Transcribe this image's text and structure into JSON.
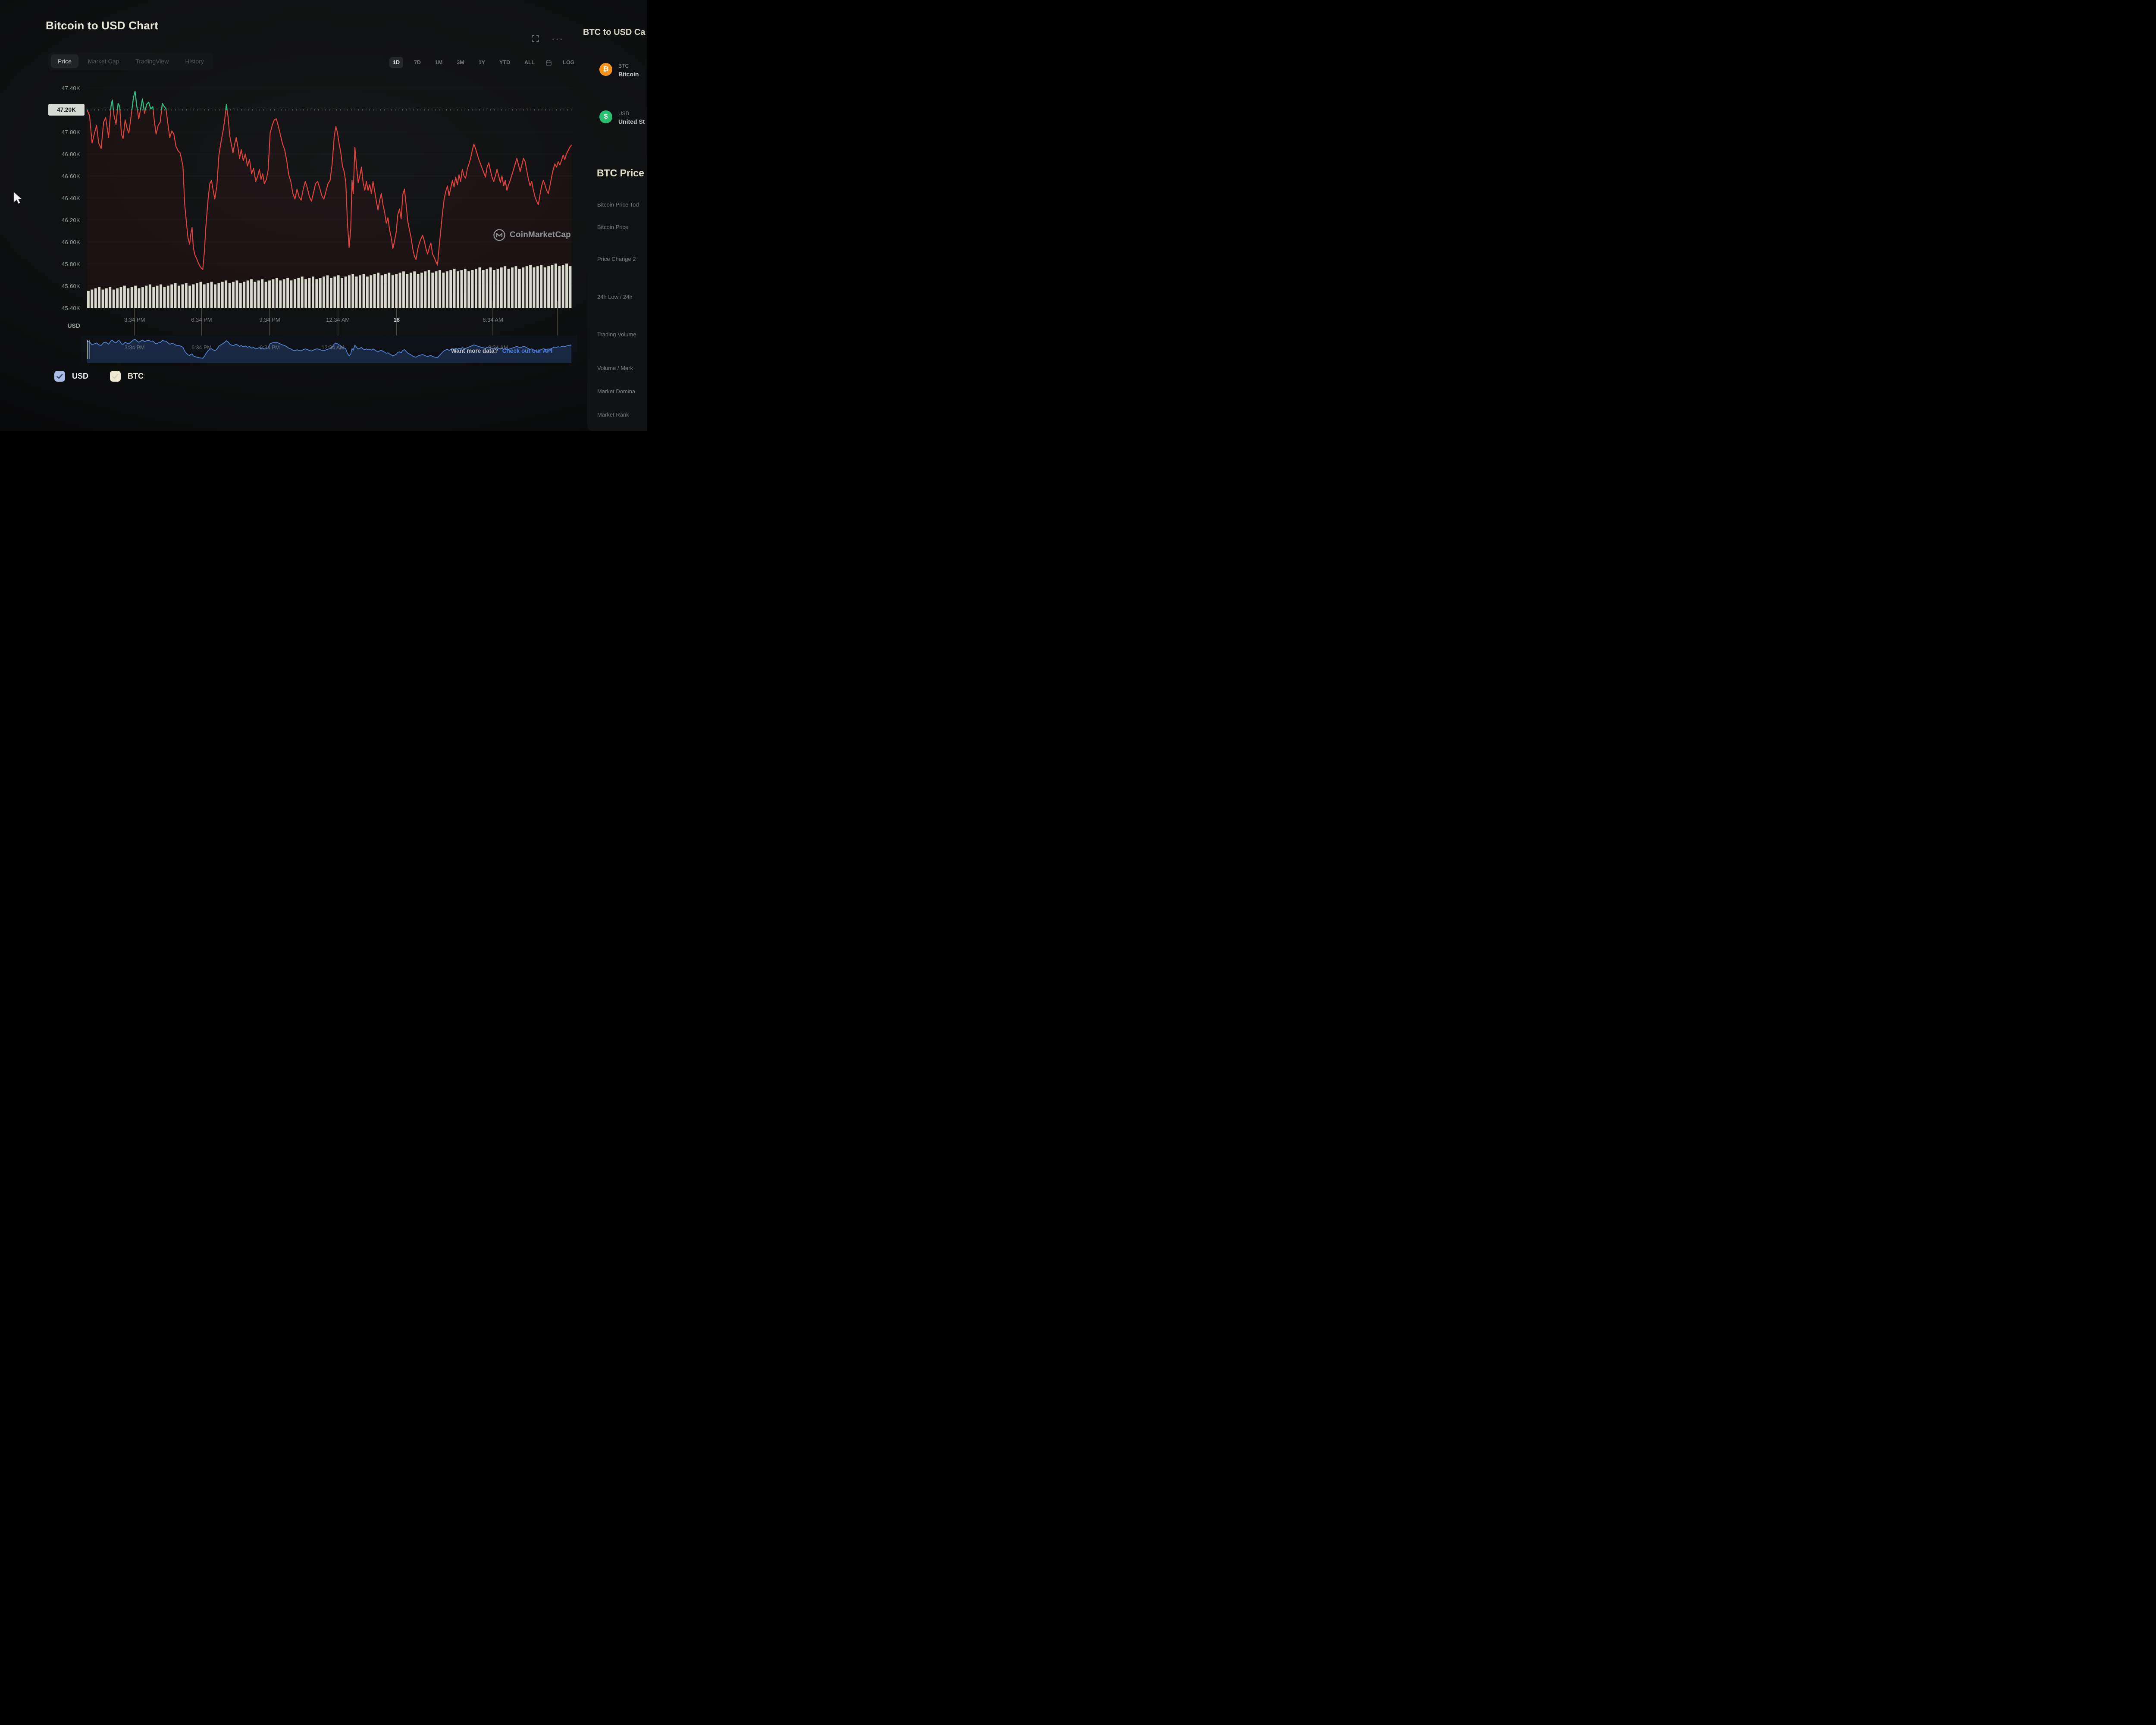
{
  "header": {
    "title": "Bitcoin to USD Chart"
  },
  "toolbar": {
    "tabs": [
      "Price",
      "Market Cap",
      "TradingView",
      "History"
    ],
    "active_tab": "Price",
    "ranges": [
      "1D",
      "7D",
      "1M",
      "3M",
      "1Y",
      "YTD",
      "ALL"
    ],
    "active_range": "1D",
    "log_label": "LOG"
  },
  "y_axis": {
    "unit": "USD",
    "badge": "47.20K",
    "labels": [
      "47.40K",
      "47.20K",
      "47.00K",
      "46.80K",
      "46.60K",
      "46.40K",
      "46.20K",
      "46.00K",
      "45.80K",
      "45.60K",
      "45.40K"
    ]
  },
  "x_axis": {
    "ticks": [
      {
        "label": "3:34 PM",
        "x": 325
      },
      {
        "label": "6:34 PM",
        "x": 487
      },
      {
        "label": "9:34 PM",
        "x": 652
      },
      {
        "label": "12:34 AM",
        "x": 817
      },
      {
        "label": "18",
        "x": 959,
        "date": true
      },
      {
        "label": "6:34 AM",
        "x": 1192
      },
      {
        "label": "",
        "x": 1348
      }
    ]
  },
  "navigator": {
    "labels": [
      {
        "label": "3:34 PM",
        "x": 325
      },
      {
        "label": "6:34 PM",
        "x": 487
      },
      {
        "label": "9:34 PM",
        "x": 652
      },
      {
        "label": "12:34 AM",
        "x": 805
      },
      {
        "label": "9:34 AM",
        "x": 1205
      }
    ]
  },
  "legend": [
    {
      "label": "USD",
      "color": "#a9bde6"
    },
    {
      "label": "BTC",
      "color": "#efe8d0"
    }
  ],
  "watermark": {
    "text": "CoinMarketCap"
  },
  "footer_note": {
    "text": "Want more data?",
    "link": "Check out our API"
  },
  "sidebar": {
    "converter_title": "BTC to USD Ca",
    "coins": [
      {
        "symbol": "BTC",
        "name": "Bitcoin",
        "color": "#f7931a",
        "glyph": "₿"
      },
      {
        "symbol": "USD",
        "name": "United St",
        "color": "#2abf6e",
        "glyph": "$"
      }
    ],
    "stats_title": "BTC Price",
    "stats_rows": [
      "Bitcoin Price Tod",
      "Bitcoin Price",
      "Price Change 2",
      "24h Low / 24h",
      "Trading Volume",
      "Volume / Mark",
      "Market Domina",
      "Market Rank"
    ]
  },
  "chart_data": {
    "type": "line",
    "title": "Bitcoin to USD Chart",
    "y_unit": "USD",
    "ylim": [
      45400,
      47400
    ],
    "y_ticks": [
      47400,
      47200,
      47000,
      46800,
      46600,
      46400,
      46200,
      46000,
      45800,
      45600,
      45400
    ],
    "previous_close": 47200,
    "line_color_up": "#1fc886",
    "line_color_down": "#e0433c",
    "grid": true,
    "x_tick_labels": [
      "3:34 PM",
      "6:34 PM",
      "9:34 PM",
      "12:34 AM",
      "18",
      "6:34 AM"
    ],
    "price_line": {
      "x_domain": [
        210,
        1385
      ],
      "points": [
        210,
        47200,
        216,
        47150,
        222,
        46900,
        228,
        46990,
        233,
        47060,
        238,
        46900,
        244,
        46850,
        250,
        47090,
        255,
        47130,
        262,
        46950,
        268,
        47240,
        271,
        47290,
        275,
        47150,
        280,
        47070,
        285,
        47260,
        289,
        47230,
        293,
        46980,
        297,
        46940,
        302,
        47110,
        307,
        47030,
        311,
        46990,
        316,
        47130,
        322,
        47310,
        326,
        47370,
        330,
        47240,
        335,
        47120,
        340,
        47220,
        344,
        47300,
        349,
        47170,
        354,
        47250,
        359,
        47270,
        364,
        47210,
        369,
        47230,
        373,
        47090,
        377,
        46980,
        382,
        47060,
        387,
        47090,
        392,
        47260,
        397,
        47230,
        401,
        47210,
        406,
        47060,
        410,
        46950,
        415,
        47010,
        420,
        46980,
        425,
        46870,
        430,
        46830,
        435,
        46810,
        438,
        46760,
        442,
        46690,
        446,
        46350,
        450,
        46190,
        454,
        46040,
        458,
        45980,
        461,
        46070,
        464,
        46130,
        467,
        45950,
        471,
        45880,
        475,
        45850,
        479,
        45810,
        483,
        45780,
        487,
        45760,
        490,
        45750,
        494,
        45920,
        497,
        46120,
        500,
        46260,
        503,
        46400,
        507,
        46530,
        511,
        46560,
        515,
        46470,
        519,
        46390,
        524,
        46510,
        529,
        46790,
        534,
        46910,
        539,
        47010,
        543,
        47110,
        547,
        47250,
        551,
        47140,
        555,
        46970,
        559,
        46890,
        563,
        46810,
        567,
        46890,
        571,
        46950,
        575,
        46860,
        579,
        46760,
        583,
        46840,
        588,
        46740,
        593,
        46800,
        598,
        46690,
        603,
        46750,
        608,
        46620,
        613,
        46670,
        618,
        46550,
        623,
        46600,
        627,
        46660,
        631,
        46570,
        635,
        46620,
        639,
        46530,
        644,
        46570,
        648,
        46650,
        653,
        46990,
        658,
        47060,
        663,
        47110,
        668,
        47120,
        673,
        47050,
        678,
        46970,
        683,
        46890,
        688,
        46840,
        693,
        46740,
        698,
        46610,
        703,
        46550,
        708,
        46440,
        713,
        46390,
        718,
        46480,
        723,
        46410,
        728,
        46380,
        733,
        46480,
        738,
        46550,
        743,
        46490,
        748,
        46410,
        753,
        46370,
        758,
        46450,
        763,
        46530,
        768,
        46550,
        773,
        46490,
        778,
        46420,
        783,
        46390,
        788,
        46460,
        793,
        46530,
        798,
        46560,
        803,
        46710,
        808,
        46960,
        812,
        47050,
        816,
        46990,
        820,
        46890,
        824,
        46810,
        828,
        46690,
        832,
        46640,
        836,
        46540,
        840,
        46180,
        844,
        45950,
        848,
        46120,
        851,
        46560,
        854,
        46440,
        858,
        46860,
        862,
        46690,
        866,
        46540,
        870,
        46600,
        874,
        46680,
        878,
        46540,
        882,
        46470,
        886,
        46550,
        890,
        46470,
        894,
        46520,
        898,
        46440,
        902,
        46550,
        906,
        46460,
        910,
        46370,
        914,
        46290,
        918,
        46380,
        922,
        46440,
        926,
        46340,
        930,
        46270,
        934,
        46170,
        938,
        46220,
        942,
        46110,
        946,
        46040,
        950,
        45940,
        954,
        46010,
        958,
        46090,
        962,
        46250,
        966,
        46300,
        970,
        46210,
        974,
        46430,
        978,
        46480,
        982,
        46340,
        986,
        46190,
        990,
        46110,
        994,
        46040,
        998,
        45940,
        1002,
        45870,
        1006,
        45840,
        1010,
        45930,
        1014,
        45990,
        1018,
        46030,
        1022,
        46060,
        1026,
        46010,
        1030,
        45940,
        1034,
        45890,
        1038,
        45950,
        1042,
        45990,
        1046,
        45890,
        1050,
        45860,
        1054,
        45820,
        1058,
        45790,
        1062,
        45960,
        1066,
        46110,
        1070,
        46260,
        1074,
        46390,
        1078,
        46460,
        1082,
        46510,
        1086,
        46420,
        1090,
        46490,
        1094,
        46560,
        1098,
        46500,
        1102,
        46590,
        1106,
        46520,
        1110,
        46610,
        1114,
        46550,
        1118,
        46660,
        1122,
        46600,
        1126,
        46580,
        1130,
        46660,
        1134,
        46710,
        1138,
        46760,
        1142,
        46830,
        1146,
        46890,
        1150,
        46850,
        1154,
        46800,
        1158,
        46750,
        1162,
        46710,
        1166,
        46670,
        1170,
        46630,
        1174,
        46590,
        1178,
        46680,
        1182,
        46720,
        1186,
        46650,
        1190,
        46590,
        1194,
        46550,
        1198,
        46600,
        1202,
        46660,
        1206,
        46600,
        1210,
        46540,
        1214,
        46600,
        1218,
        46510,
        1222,
        46560,
        1226,
        46470,
        1230,
        46520,
        1234,
        46560,
        1238,
        46610,
        1242,
        46660,
        1246,
        46710,
        1250,
        46760,
        1254,
        46700,
        1258,
        46640,
        1262,
        46700,
        1266,
        46760,
        1270,
        46730,
        1274,
        46650,
        1278,
        46570,
        1282,
        46510,
        1286,
        46550,
        1290,
        46470,
        1294,
        46410,
        1298,
        46370,
        1302,
        46340,
        1306,
        46430,
        1310,
        46510,
        1314,
        46560,
        1318,
        46520,
        1322,
        46470,
        1326,
        46440,
        1330,
        46510,
        1334,
        46590,
        1338,
        46660,
        1342,
        46710,
        1346,
        46680,
        1350,
        46730,
        1354,
        46700,
        1358,
        46740,
        1362,
        46790,
        1366,
        46750,
        1370,
        46800,
        1374,
        46830,
        1378,
        46860,
        1382,
        46880
      ]
    },
    "volume_bars": {
      "count": 134,
      "baseline": 45400,
      "top_start": 45570,
      "top_end": 45795,
      "color": "#e8ecdd"
    },
    "navigator": {
      "color": "#5585d6",
      "range": [
        45700,
        47400
      ]
    }
  }
}
